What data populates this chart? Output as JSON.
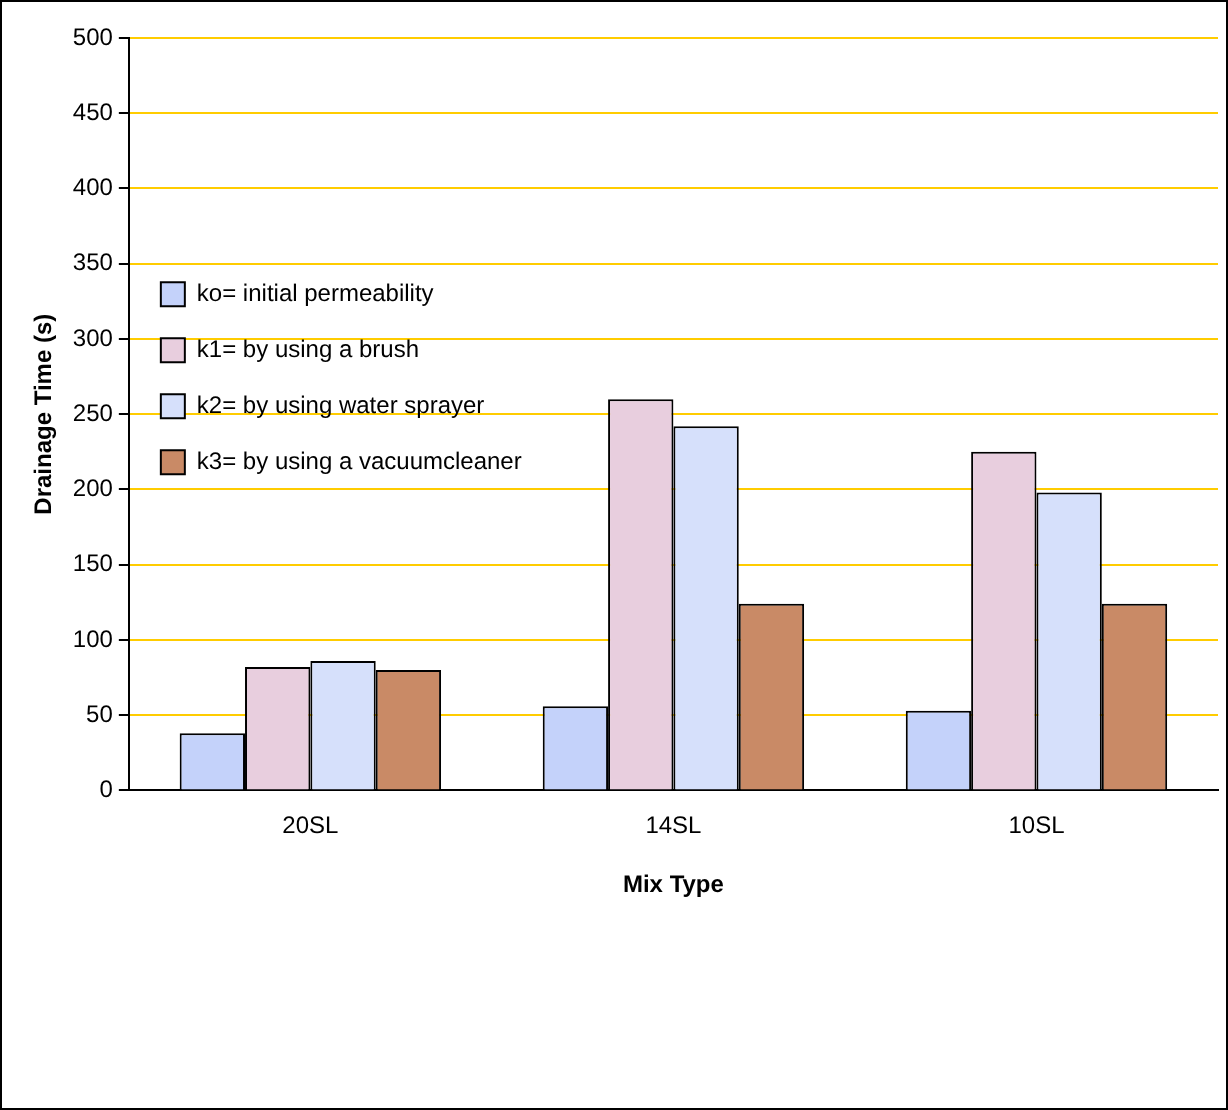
{
  "chart_data": {
    "type": "bar",
    "xlabel": "Mix Type",
    "ylabel": "Drainage Time (s)",
    "categories": [
      "20SL",
      "14SL",
      "10SL"
    ],
    "series": [
      {
        "name": "ko= initial permeability",
        "color": "#c4d2fa",
        "values": [
          38,
          56,
          53
        ]
      },
      {
        "name": "k1= by using a brush",
        "color": "#e8cede",
        "values": [
          82,
          260,
          225
        ]
      },
      {
        "name": "k2= by using water sprayer",
        "color": "#d6e0fb",
        "values": [
          86,
          242,
          198
        ]
      },
      {
        "name": "k3= by using a vacuumcleaner",
        "color": "#c98a66",
        "values": [
          80,
          124,
          124
        ]
      }
    ],
    "ylim": [
      0,
      500
    ],
    "yticks": [
      0,
      50,
      100,
      150,
      200,
      250,
      300,
      350,
      400,
      450,
      500
    ],
    "grid": "y",
    "legend": "top"
  }
}
